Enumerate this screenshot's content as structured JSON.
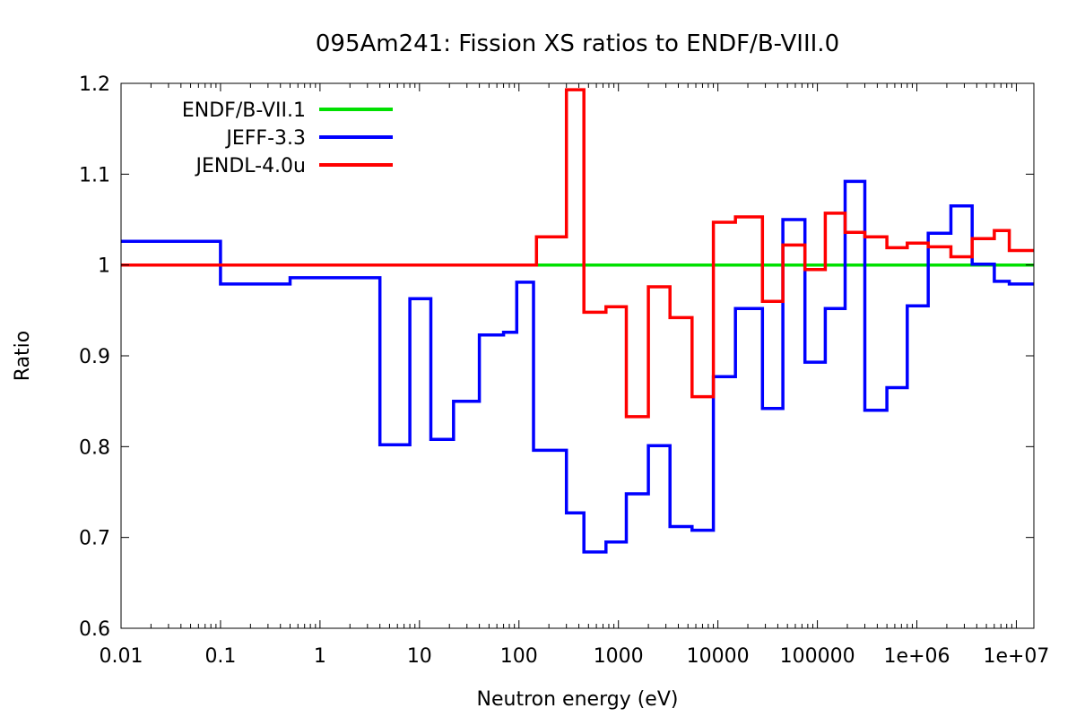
{
  "chart_data": {
    "type": "line",
    "step": true,
    "title": "095Am241: Fission XS ratios to ENDF/B-VIII.0",
    "xlabel": "Neutron energy (eV)",
    "ylabel": "Ratio",
    "xscale": "log",
    "xlim": [
      0.01,
      15000000
    ],
    "ylim": [
      0.6,
      1.2
    ],
    "grid": false,
    "legend_position": "top-left",
    "x_ticks": [
      0.01,
      0.1,
      1,
      10,
      100,
      1000,
      10000,
      100000,
      1000000,
      10000000
    ],
    "x_tick_labels": [
      "0.01",
      "0.1",
      "1",
      "10",
      "100",
      "1000",
      "10000",
      "100000",
      "1e+06",
      "1e+07"
    ],
    "y_ticks": [
      0.6,
      0.7,
      0.8,
      0.9,
      1,
      1.1,
      1.2
    ],
    "y_tick_labels": [
      "0.6",
      "0.7",
      "0.8",
      "0.9",
      "1",
      "1.1",
      "1.2"
    ],
    "series": [
      {
        "name": "ENDF/B-VII.1",
        "color": "#00e000",
        "points": [
          [
            0.01,
            1.0
          ],
          [
            15000000,
            1.0
          ]
        ]
      },
      {
        "name": "JEFF-3.3",
        "color": "#0000ff",
        "points": [
          [
            0.01,
            1.026
          ],
          [
            0.1,
            0.979
          ],
          [
            0.5,
            0.986
          ],
          [
            4,
            0.802
          ],
          [
            8,
            0.963
          ],
          [
            13,
            0.808
          ],
          [
            22,
            0.85
          ],
          [
            40,
            0.923
          ],
          [
            70,
            0.926
          ],
          [
            95,
            0.981
          ],
          [
            140,
            0.796
          ],
          [
            300,
            0.727
          ],
          [
            450,
            0.684
          ],
          [
            750,
            0.695
          ],
          [
            1200,
            0.748
          ],
          [
            2000,
            0.801
          ],
          [
            3300,
            0.712
          ],
          [
            5500,
            0.708
          ],
          [
            9000,
            0.877
          ],
          [
            15000,
            0.952
          ],
          [
            28000,
            0.842
          ],
          [
            45000,
            1.05
          ],
          [
            75000,
            0.893
          ],
          [
            120000,
            0.952
          ],
          [
            190000,
            1.092
          ],
          [
            300000,
            0.84
          ],
          [
            500000,
            0.865
          ],
          [
            800000,
            0.955
          ],
          [
            1300000,
            1.035
          ],
          [
            2200000,
            1.065
          ],
          [
            3600000,
            1.001
          ],
          [
            6000000,
            0.982
          ],
          [
            8500000,
            0.979
          ],
          [
            15000000,
            0.979
          ]
        ]
      },
      {
        "name": "JENDL-4.0u",
        "color": "#ff0000",
        "points": [
          [
            0.01,
            1.0
          ],
          [
            150,
            1.031
          ],
          [
            300,
            1.193
          ],
          [
            450,
            0.948
          ],
          [
            750,
            0.954
          ],
          [
            1200,
            0.833
          ],
          [
            2000,
            0.976
          ],
          [
            3300,
            0.942
          ],
          [
            5500,
            0.855
          ],
          [
            9000,
            1.047
          ],
          [
            15000,
            1.053
          ],
          [
            28000,
            0.96
          ],
          [
            45000,
            1.022
          ],
          [
            75000,
            0.995
          ],
          [
            120000,
            1.057
          ],
          [
            190000,
            1.036
          ],
          [
            300000,
            1.031
          ],
          [
            500000,
            1.019
          ],
          [
            800000,
            1.024
          ],
          [
            1300000,
            1.02
          ],
          [
            2200000,
            1.009
          ],
          [
            3600000,
            1.029
          ],
          [
            6000000,
            1.038
          ],
          [
            8500000,
            1.016
          ],
          [
            15000000,
            1.016
          ]
        ]
      }
    ]
  }
}
